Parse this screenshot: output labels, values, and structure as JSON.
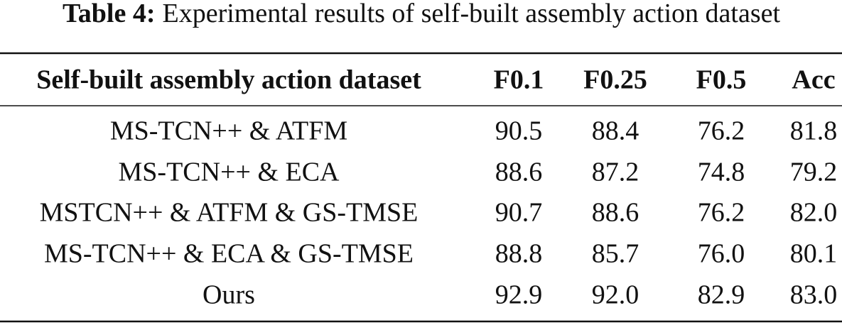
{
  "caption": {
    "label": "Table 4:",
    "text": "Experimental results of self-built assembly action dataset"
  },
  "table": {
    "header": [
      "Self-built assembly action dataset",
      "F0.1",
      "F0.25",
      "F0.5",
      "Acc"
    ],
    "rows": [
      [
        "MS-TCN++ & ATFM",
        "90.5",
        "88.4",
        "76.2",
        "81.8"
      ],
      [
        "MS-TCN++ & ECA",
        "88.6",
        "87.2",
        "74.8",
        "79.2"
      ],
      [
        "MSTCN++ & ATFM & GS-TMSE",
        "90.7",
        "88.6",
        "76.2",
        "82.0"
      ],
      [
        "MS-TCN++ & ECA & GS-TMSE",
        "88.8",
        "85.7",
        "76.0",
        "80.1"
      ],
      [
        "Ours",
        "92.9",
        "92.0",
        "82.9",
        "83.0"
      ]
    ]
  }
}
